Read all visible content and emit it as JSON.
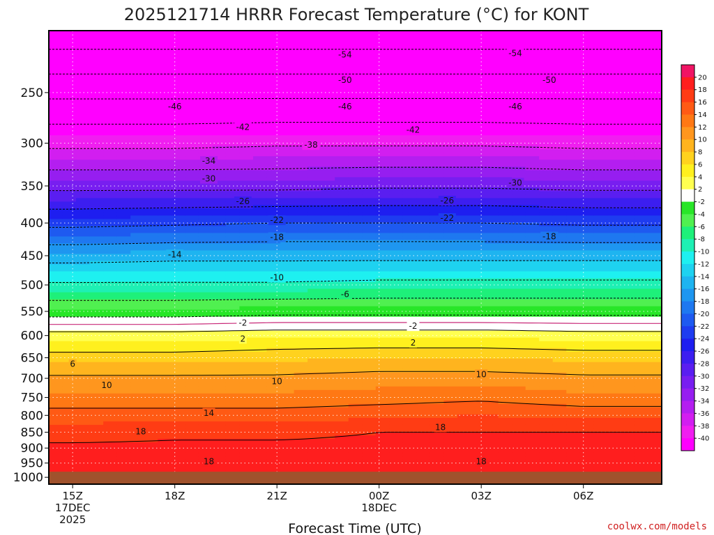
{
  "chart_data": {
    "type": "heatmap",
    "title": "2025121714 HRRR Forecast Temperature (°C) for KONT",
    "xlabel": "Forecast Time (UTC)",
    "ylabel": "",
    "y_scale": "log",
    "y_inverted": true,
    "ylim": [
      1025,
      200
    ],
    "xlim_hours": [
      -0.7,
      17.3
    ],
    "y_ticks": [
      250,
      300,
      350,
      400,
      450,
      500,
      550,
      600,
      650,
      700,
      750,
      800,
      850,
      900,
      950,
      1000
    ],
    "x_ticks": [
      {
        "hour": 0,
        "lines": [
          "15Z",
          "17DEC",
          "2025"
        ]
      },
      {
        "hour": 3,
        "lines": [
          "18Z"
        ]
      },
      {
        "hour": 6,
        "lines": [
          "21Z"
        ]
      },
      {
        "hour": 9,
        "lines": [
          "00Z",
          "18DEC"
        ]
      },
      {
        "hour": 12,
        "lines": [
          "03Z"
        ]
      },
      {
        "hour": 15,
        "lines": [
          "06Z"
        ]
      }
    ],
    "grid": true,
    "ground_level_hpa": 980,
    "colorbar": {
      "placement": "right",
      "tick_labels": [
        "20",
        "18",
        "16",
        "14",
        "12",
        "10",
        "8",
        "6",
        "4",
        "2",
        "-2",
        "-4",
        "-6",
        "-8",
        "-10",
        "-12",
        "-14",
        "-16",
        "-18",
        "-20",
        "-22",
        "-24",
        "-26",
        "-28",
        "-30",
        "-32",
        "-34",
        "-36",
        "-38",
        "-40"
      ],
      "bands": [
        {
          "min": 20,
          "color": "#f01464"
        },
        {
          "min": 18,
          "color": "#ff1e1e"
        },
        {
          "min": 16,
          "color": "#ff3c14"
        },
        {
          "min": 14,
          "color": "#ff5a14"
        },
        {
          "min": 12,
          "color": "#ff7814"
        },
        {
          "min": 10,
          "color": "#ff961e"
        },
        {
          "min": 8,
          "color": "#ffb41e"
        },
        {
          "min": 6,
          "color": "#ffd21e"
        },
        {
          "min": 4,
          "color": "#fff01e"
        },
        {
          "min": 2,
          "color": "#ffff50"
        },
        {
          "min": -2,
          "color": "#ffffff"
        },
        {
          "min": -4,
          "color": "#28e628"
        },
        {
          "min": -6,
          "color": "#50f050"
        },
        {
          "min": -8,
          "color": "#1ef07a"
        },
        {
          "min": -10,
          "color": "#1ef0b4"
        },
        {
          "min": -12,
          "color": "#1ef0f0"
        },
        {
          "min": -14,
          "color": "#1ed2f0"
        },
        {
          "min": -16,
          "color": "#1eb4f0"
        },
        {
          "min": -18,
          "color": "#1e96f0"
        },
        {
          "min": -20,
          "color": "#1e78f0"
        },
        {
          "min": -22,
          "color": "#1e5af0"
        },
        {
          "min": -24,
          "color": "#1e3cf0"
        },
        {
          "min": -26,
          "color": "#1e1ef0"
        },
        {
          "min": -28,
          "color": "#3c1ef0"
        },
        {
          "min": -30,
          "color": "#5a1ef0"
        },
        {
          "min": -32,
          "color": "#781ef0"
        },
        {
          "min": -34,
          "color": "#961ef0"
        },
        {
          "min": -36,
          "color": "#b41ef0"
        },
        {
          "min": -38,
          "color": "#d21ef0"
        },
        {
          "min": -40,
          "color": "#f01ef0"
        },
        {
          "min": -999,
          "color": "#ff00ff"
        }
      ]
    },
    "ground_color": "#a0522d",
    "series": [
      {
        "hour": 0,
        "levels_hpa": [
          1000,
          950,
          900,
          850,
          800,
          750,
          700,
          650,
          600,
          550,
          500,
          450,
          400,
          350,
          300,
          250,
          200
        ],
        "temp_c": [
          19.5,
          19,
          18.5,
          17,
          15,
          12.5,
          10.5,
          7,
          3,
          -3.5,
          -9.5,
          -15.5,
          -23,
          -31,
          -39,
          -47,
          -57
        ]
      },
      {
        "hour": 3,
        "levels_hpa": [
          1000,
          950,
          900,
          850,
          800,
          750,
          700,
          650,
          600,
          550,
          500,
          450,
          400,
          350,
          300,
          250,
          200
        ],
        "temp_c": [
          19.5,
          19,
          18.5,
          17.5,
          15,
          12.5,
          10.5,
          7,
          3,
          -3.5,
          -9.5,
          -15,
          -22.5,
          -31,
          -39,
          -47,
          -57
        ]
      },
      {
        "hour": 6,
        "levels_hpa": [
          1000,
          950,
          900,
          850,
          800,
          750,
          700,
          650,
          600,
          550,
          500,
          450,
          400,
          350,
          300,
          250,
          200
        ],
        "temp_c": [
          19.5,
          19,
          18.5,
          17.5,
          15,
          12.5,
          10.5,
          7.5,
          3.5,
          -3,
          -9.5,
          -15,
          -22,
          -31,
          -38.5,
          -47,
          -57
        ]
      },
      {
        "hour": 9,
        "levels_hpa": [
          1000,
          950,
          900,
          850,
          800,
          750,
          700,
          650,
          600,
          550,
          500,
          450,
          400,
          350,
          300,
          250,
          200
        ],
        "temp_c": [
          19.5,
          19,
          18.5,
          18,
          15.5,
          13,
          11,
          8,
          3.5,
          -3,
          -9,
          -15,
          -22,
          -30.5,
          -38.5,
          -47,
          -57
        ]
      },
      {
        "hour": 12,
        "levels_hpa": [
          1000,
          950,
          900,
          850,
          800,
          750,
          700,
          650,
          600,
          550,
          500,
          450,
          400,
          350,
          300,
          250,
          200
        ],
        "temp_c": [
          19.5,
          19,
          18.5,
          18,
          16,
          13.5,
          11,
          8,
          3.5,
          -3,
          -9,
          -15,
          -22,
          -30.5,
          -38.5,
          -47,
          -57
        ]
      },
      {
        "hour": 15,
        "levels_hpa": [
          1000,
          950,
          900,
          850,
          800,
          750,
          700,
          650,
          600,
          550,
          500,
          450,
          400,
          350,
          300,
          250,
          200
        ],
        "temp_c": [
          19.5,
          19,
          18.5,
          18,
          15.5,
          12.5,
          10.5,
          7.5,
          3,
          -3,
          -9,
          -15,
          -22.5,
          -31,
          -39,
          -47,
          -57
        ]
      }
    ],
    "contours": [
      {
        "value": 18,
        "style": "solid",
        "labels": [
          {
            "text": "18",
            "hour": 2.0,
            "p": 848
          },
          {
            "text": "18",
            "hour": 10.8,
            "p": 835
          },
          {
            "text": "18",
            "hour": 4.0,
            "p": 945
          },
          {
            "text": "18",
            "hour": 12.0,
            "p": 945
          }
        ]
      },
      {
        "value": 14,
        "style": "solid",
        "labels": [
          {
            "text": "14",
            "hour": 4.0,
            "p": 793
          }
        ]
      },
      {
        "value": 10,
        "style": "solid",
        "labels": [
          {
            "text": "10",
            "hour": 1.0,
            "p": 718
          },
          {
            "text": "10",
            "hour": 6.0,
            "p": 708
          },
          {
            "text": "10",
            "hour": 12.0,
            "p": 690
          }
        ]
      },
      {
        "value": 6,
        "style": "solid",
        "labels": [
          {
            "text": "6",
            "hour": 0.0,
            "p": 665
          }
        ]
      },
      {
        "value": 2,
        "style": "solid",
        "labels": [
          {
            "text": "2",
            "hour": 5.0,
            "p": 607
          },
          {
            "text": "2",
            "hour": 10.0,
            "p": 616
          }
        ]
      },
      {
        "value": 0,
        "style": "solid",
        "color": "#c82878",
        "labels": []
      },
      {
        "value": -2,
        "style": "dashed",
        "labels": [
          {
            "text": "-2",
            "hour": 5.0,
            "p": 573
          },
          {
            "text": "-2",
            "hour": 10.0,
            "p": 580
          }
        ]
      },
      {
        "value": -6,
        "style": "dashed",
        "labels": [
          {
            "text": "-6",
            "hour": 8.0,
            "p": 517
          }
        ]
      },
      {
        "value": -10,
        "style": "dashed",
        "labels": [
          {
            "text": "-10",
            "hour": 6.0,
            "p": 487
          }
        ]
      },
      {
        "value": -14,
        "style": "dashed",
        "labels": [
          {
            "text": "-14",
            "hour": 3.0,
            "p": 448
          }
        ]
      },
      {
        "value": -18,
        "style": "dashed",
        "labels": [
          {
            "text": "-18",
            "hour": 6.0,
            "p": 421
          },
          {
            "text": "-18",
            "hour": 14.0,
            "p": 420
          }
        ]
      },
      {
        "value": -22,
        "style": "dashed",
        "labels": [
          {
            "text": "-22",
            "hour": 6.0,
            "p": 396
          },
          {
            "text": "-22",
            "hour": 11.0,
            "p": 393
          }
        ]
      },
      {
        "value": -26,
        "style": "dashed",
        "labels": [
          {
            "text": "-26",
            "hour": 5.0,
            "p": 370
          },
          {
            "text": "-26",
            "hour": 11.0,
            "p": 369
          }
        ]
      },
      {
        "value": -30,
        "style": "dashed",
        "labels": [
          {
            "text": "-30",
            "hour": 4.0,
            "p": 341
          },
          {
            "text": "-30",
            "hour": 13.0,
            "p": 346
          }
        ]
      },
      {
        "value": -34,
        "style": "dashed",
        "labels": [
          {
            "text": "-34",
            "hour": 4.0,
            "p": 320
          }
        ]
      },
      {
        "value": -38,
        "style": "dashed",
        "labels": [
          {
            "text": "-38",
            "hour": 7.0,
            "p": 302
          }
        ]
      },
      {
        "value": -42,
        "style": "dashed",
        "labels": [
          {
            "text": "-42",
            "hour": 5.0,
            "p": 283
          },
          {
            "text": "-42",
            "hour": 10.0,
            "p": 286
          }
        ]
      },
      {
        "value": -46,
        "style": "dashed",
        "labels": [
          {
            "text": "-46",
            "hour": 3.0,
            "p": 263
          },
          {
            "text": "-46",
            "hour": 8.0,
            "p": 263
          },
          {
            "text": "-46",
            "hour": 13.0,
            "p": 263
          }
        ]
      },
      {
        "value": -50,
        "style": "dashed",
        "labels": [
          {
            "text": "-50",
            "hour": 8.0,
            "p": 239
          },
          {
            "text": "-50",
            "hour": 14.0,
            "p": 239
          }
        ]
      },
      {
        "value": -54,
        "style": "dashed",
        "labels": [
          {
            "text": "-54",
            "hour": 8.0,
            "p": 218
          },
          {
            "text": "-54",
            "hour": 13.0,
            "p": 217
          }
        ]
      }
    ]
  },
  "credit": "coolwx.com/models"
}
